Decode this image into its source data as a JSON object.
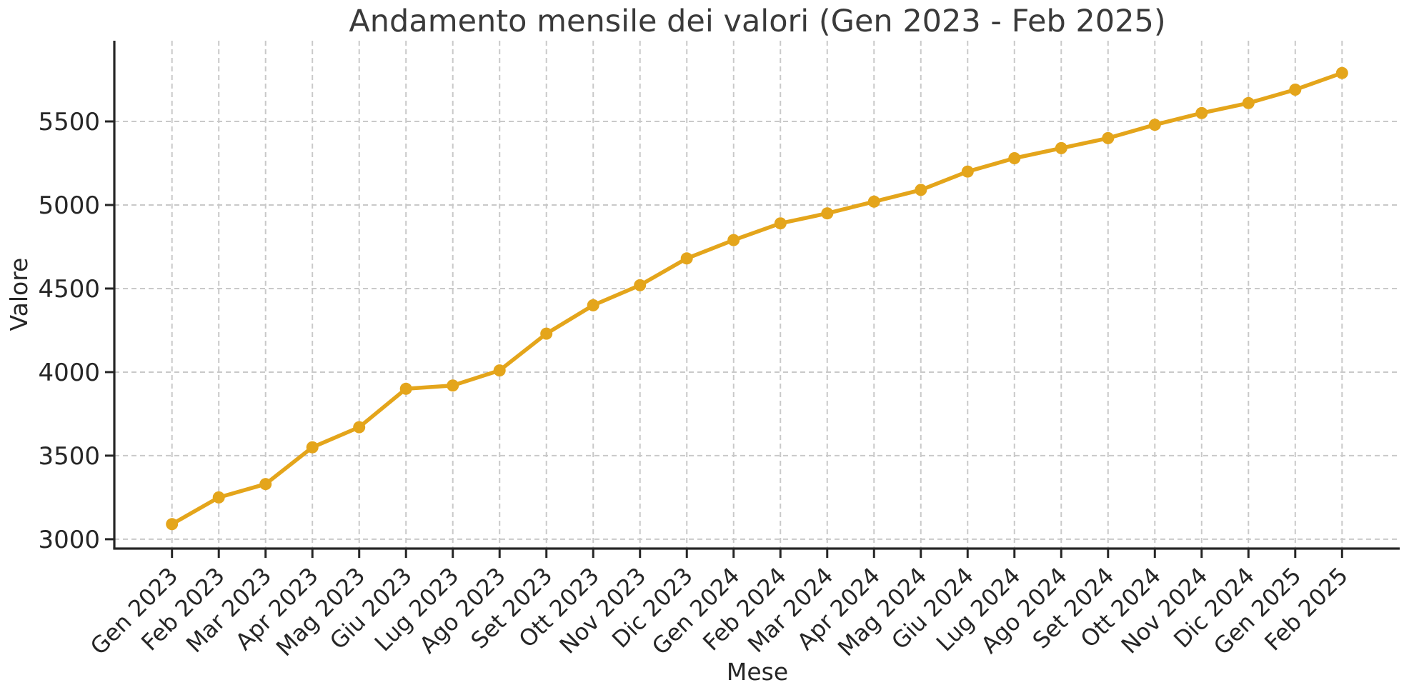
{
  "chart_data": {
    "type": "line",
    "title": "Andamento mensile dei valori (Gen 2023 - Feb 2025)",
    "xlabel": "Mese",
    "ylabel": "Valore",
    "categories": [
      "Gen 2023",
      "Feb 2023",
      "Mar 2023",
      "Apr 2023",
      "Mag 2023",
      "Giu 2023",
      "Lug 2023",
      "Ago 2023",
      "Set 2023",
      "Ott 2023",
      "Nov 2023",
      "Dic 2023",
      "Gen 2024",
      "Feb 2024",
      "Mar 2024",
      "Apr 2024",
      "Mag 2024",
      "Giu 2024",
      "Lug 2024",
      "Ago 2024",
      "Set 2024",
      "Ott 2024",
      "Nov 2024",
      "Dic 2024",
      "Gen 2025",
      "Feb 2025"
    ],
    "series": [
      {
        "name": "Valore",
        "values": [
          3090,
          3250,
          3330,
          3550,
          3670,
          3900,
          3920,
          4010,
          4230,
          4400,
          4520,
          4680,
          4790,
          4890,
          4950,
          5020,
          5090,
          5200,
          5280,
          5340,
          5400,
          5480,
          5550,
          5610,
          5690,
          5790
        ]
      }
    ],
    "yticks": [
      3000,
      3500,
      4000,
      4500,
      5000,
      5500
    ],
    "ylim": [
      2944,
      5983
    ],
    "grid": true,
    "grid_style": "dashed",
    "legend": "none",
    "marker": "circle",
    "colors": {
      "line": "#E4A51B",
      "marker": "#E4A51B",
      "grid": "#c9c9c9",
      "spine": "#262626",
      "tick_label": "#262626",
      "title": "#3a3a3a",
      "background": "#ffffff"
    }
  }
}
